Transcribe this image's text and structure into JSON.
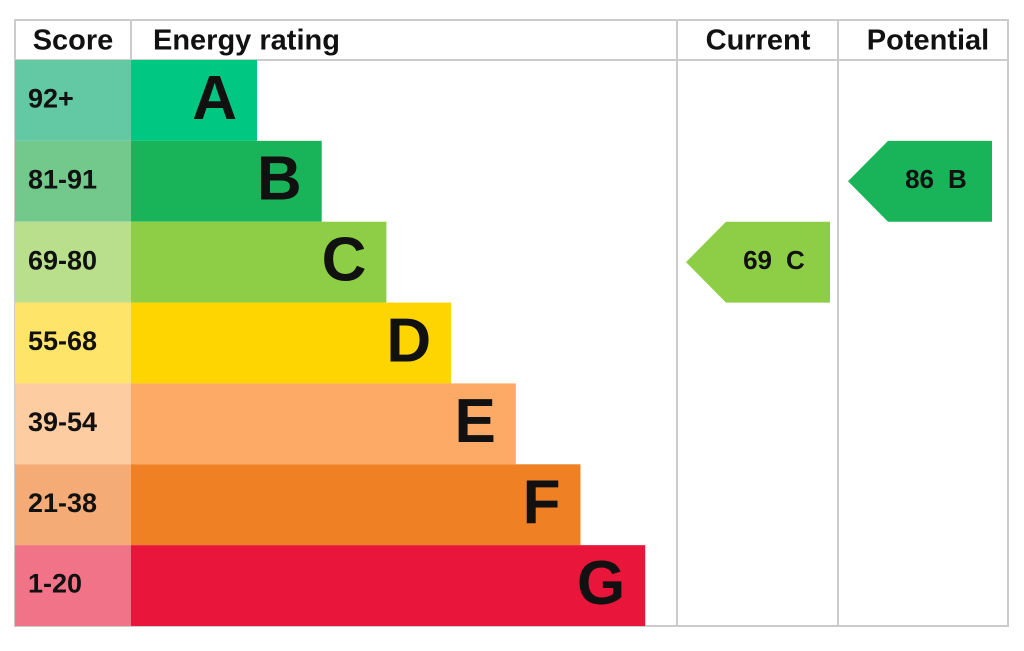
{
  "headers": {
    "score": "Score",
    "rating": "Energy rating",
    "current": "Current",
    "potential": "Potential"
  },
  "bands": [
    {
      "score": "92+",
      "letter": "A",
      "color": "#00c781",
      "score_color": "#63c8a4"
    },
    {
      "score": "81-91",
      "letter": "B",
      "color": "#19b459",
      "score_color": "#72c98b"
    },
    {
      "score": "69-80",
      "letter": "C",
      "color": "#8dce46",
      "score_color": "#b9df8d"
    },
    {
      "score": "55-68",
      "letter": "D",
      "color": "#ffd500",
      "score_color": "#ffe46a"
    },
    {
      "score": "39-54",
      "letter": "E",
      "color": "#fcaa65",
      "score_color": "#fdcca1"
    },
    {
      "score": "21-38",
      "letter": "F",
      "color": "#ef8023",
      "score_color": "#f4ab75"
    },
    {
      "score": "1-20",
      "letter": "G",
      "color": "#e9153b",
      "score_color": "#f17388"
    }
  ],
  "current": {
    "value": 69,
    "letter": "C"
  },
  "potential": {
    "value": 86,
    "letter": "B"
  }
}
